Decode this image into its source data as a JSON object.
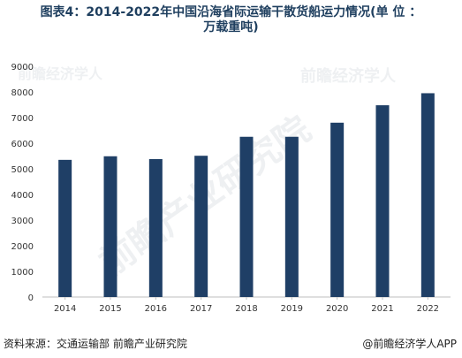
{
  "title": "图表4：2014-2022年中国沿海省际运输干散货船运力情况(单 位 ：\n万载重吨)",
  "footer": {
    "source": "资料来源：交通运输部 前瞻产业研究院",
    "brand": "@前瞻经济学人APP"
  },
  "watermark": {
    "center": "前瞻产业研究院",
    "corner": "前瞻经济学人"
  },
  "colors": {
    "bar": "#1f3f66",
    "axis": "#bfbfbf",
    "tick_text": "#333333",
    "title": "#1f3f5f"
  },
  "chart_data": {
    "type": "bar",
    "categories": [
      "2014",
      "2015",
      "2016",
      "2017",
      "2018",
      "2019",
      "2020",
      "2021",
      "2022"
    ],
    "values": [
      5350,
      5490,
      5380,
      5510,
      6250,
      6250,
      6800,
      7480,
      7950
    ],
    "yticks": [
      0,
      1000,
      2000,
      3000,
      4000,
      5000,
      6000,
      7000,
      8000,
      9000
    ],
    "ylim": [
      0,
      9000
    ],
    "grid": false,
    "legend": "none"
  }
}
